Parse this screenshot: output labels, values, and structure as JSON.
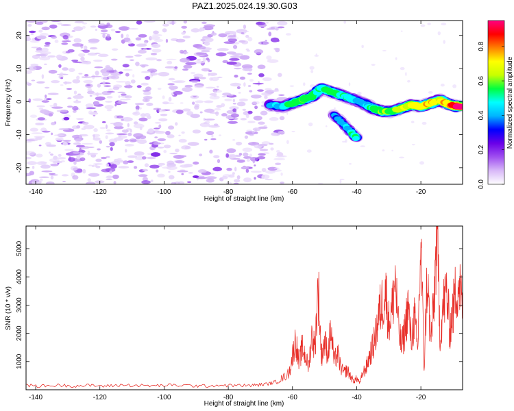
{
  "title": "PAZ1.2025.024.19.30.G03",
  "colorbar": {
    "label": "Normalized spectral amplitude",
    "ticks": [
      "0.0",
      "0.2",
      "0.4",
      "0.6",
      "0.8"
    ],
    "tick_values": [
      0.0,
      0.2,
      0.4,
      0.6,
      0.8
    ],
    "range": [
      0,
      0.95
    ],
    "colors": [
      "#ffffff",
      "#d8b8f8",
      "#a050f0",
      "#6a00e8",
      "#0000ff",
      "#00b4ff",
      "#00ffff",
      "#00ff40",
      "#c8ff00",
      "#ffff00",
      "#ff8000",
      "#ff0000",
      "#ff0080"
    ]
  },
  "chart_data": [
    {
      "type": "heatmap",
      "xlabel": "Height of straight line (km)",
      "ylabel": "Frequency (Hz)",
      "xlim": [
        -143,
        -7
      ],
      "ylim": [
        -25,
        24.5
      ],
      "xticks": [
        -140,
        -120,
        -100,
        -80,
        -60,
        -40,
        -20
      ],
      "yticks": [
        -20,
        -10,
        0,
        10,
        20
      ],
      "noise_region_x": [
        -143,
        -67
      ],
      "ridge": [
        {
          "x": -67,
          "y": -1,
          "amp": 0.25
        },
        {
          "x": -63,
          "y": -1.5,
          "amp": 0.35
        },
        {
          "x": -60,
          "y": -0.5,
          "amp": 0.45
        },
        {
          "x": -57,
          "y": 0.5,
          "amp": 0.55
        },
        {
          "x": -54,
          "y": 1.5,
          "amp": 0.5
        },
        {
          "x": -51,
          "y": 4,
          "amp": 0.45
        },
        {
          "x": -48,
          "y": 3,
          "amp": 0.5
        },
        {
          "x": -45,
          "y": 2,
          "amp": 0.45
        },
        {
          "x": -42,
          "y": 1,
          "amp": 0.4
        },
        {
          "x": -38,
          "y": -0.5,
          "amp": 0.3
        },
        {
          "x": -35,
          "y": -2,
          "amp": 0.45
        },
        {
          "x": -32,
          "y": -3,
          "amp": 0.55
        },
        {
          "x": -29,
          "y": -3,
          "amp": 0.5
        },
        {
          "x": -26,
          "y": -2,
          "amp": 0.6
        },
        {
          "x": -23,
          "y": -1,
          "amp": 0.65
        },
        {
          "x": -20,
          "y": -1.5,
          "amp": 0.7
        },
        {
          "x": -17,
          "y": -0.5,
          "amp": 0.7
        },
        {
          "x": -14,
          "y": 0.5,
          "amp": 0.65
        },
        {
          "x": -11,
          "y": -1,
          "amp": 0.75
        },
        {
          "x": -8,
          "y": -1.5,
          "amp": 0.95
        }
      ],
      "secondary_feature": [
        {
          "x": -47,
          "y": -4,
          "amp": 0.25
        },
        {
          "x": -45,
          "y": -6,
          "amp": 0.3
        },
        {
          "x": -42,
          "y": -9,
          "amp": 0.4
        },
        {
          "x": -40,
          "y": -11,
          "amp": 0.45
        }
      ]
    },
    {
      "type": "line",
      "xlabel": "Height of straight line (km)",
      "ylabel": "SNR (10 * v/v)",
      "xlim": [
        -143,
        -7
      ],
      "ylim": [
        0,
        5800
      ],
      "xticks": [
        -140,
        -120,
        -100,
        -80,
        -60,
        -40,
        -20
      ],
      "yticks": [
        1000,
        2000,
        3000,
        4000,
        5000
      ],
      "color": "#e8302a",
      "series": [
        {
          "x": [
            -143,
            -138,
            -133,
            -128,
            -123,
            -118,
            -113,
            -108,
            -103,
            -98,
            -93,
            -88,
            -83,
            -78,
            -73,
            -70,
            -67,
            -65,
            -63,
            -61,
            -60,
            -59,
            -58,
            -57,
            -56,
            -55,
            -54,
            -53,
            -52,
            -51,
            -50,
            -49,
            -48,
            -47,
            -46,
            -45,
            -44,
            -43,
            -42,
            -41,
            -40,
            -39,
            -38,
            -37,
            -36,
            -35,
            -34,
            -33,
            -32,
            -31,
            -30,
            -29,
            -28,
            -27,
            -26,
            -25,
            -24,
            -23,
            -22,
            -21,
            -20,
            -19,
            -18,
            -17,
            -16,
            -15,
            -14,
            -13,
            -12,
            -11,
            -10,
            -9,
            -8,
            -7
          ],
          "y": [
            150,
            130,
            160,
            140,
            150,
            130,
            170,
            150,
            140,
            160,
            150,
            130,
            160,
            150,
            150,
            180,
            220,
            300,
            420,
            600,
            1200,
            1800,
            900,
            1500,
            1200,
            800,
            1900,
            1500,
            3700,
            1200,
            1700,
            1300,
            2100,
            1000,
            1300,
            800,
            600,
            700,
            500,
            300,
            400,
            250,
            600,
            800,
            1200,
            1500,
            2000,
            2700,
            3100,
            3500,
            2400,
            2800,
            4000,
            2200,
            1500,
            2100,
            3000,
            1700,
            2600,
            1300,
            5300,
            700,
            4100,
            1700,
            2900,
            5700,
            1900,
            3000,
            3500,
            2100,
            2800,
            3600,
            3800,
            2700
          ]
        }
      ]
    }
  ]
}
